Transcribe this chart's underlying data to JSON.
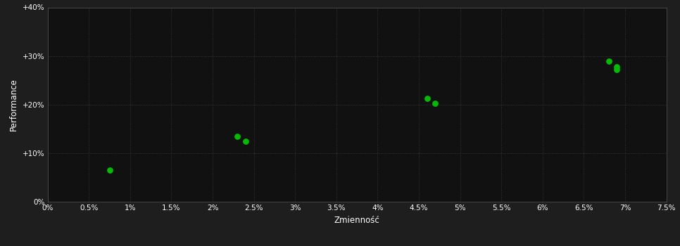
{
  "xlabel": "Zmienność",
  "ylabel": "Performance",
  "background_color": "#1e1e1e",
  "plot_bg_color": "#111111",
  "grid_color": "#404040",
  "text_color": "#ffffff",
  "point_color": "#00bb00",
  "points": [
    [
      0.0075,
      0.065
    ],
    [
      0.023,
      0.135
    ],
    [
      0.024,
      0.125
    ],
    [
      0.046,
      0.212
    ],
    [
      0.047,
      0.203
    ],
    [
      0.068,
      0.29
    ],
    [
      0.069,
      0.278
    ],
    [
      0.069,
      0.272
    ]
  ],
  "xlim": [
    0.0,
    0.075
  ],
  "ylim": [
    0.0,
    0.4
  ],
  "xticks": [
    0.0,
    0.005,
    0.01,
    0.015,
    0.02,
    0.025,
    0.03,
    0.035,
    0.04,
    0.045,
    0.05,
    0.055,
    0.06,
    0.065,
    0.07,
    0.075
  ],
  "yticks": [
    0.0,
    0.1,
    0.2,
    0.3,
    0.4
  ],
  "xtick_labels": [
    "0%",
    "0.5%",
    "1%",
    "1.5%",
    "2%",
    "2.5%",
    "3%",
    "3.5%",
    "4%",
    "4.5%",
    "5%",
    "5.5%",
    "6%",
    "6.5%",
    "7%",
    "7.5%"
  ],
  "ytick_labels": [
    "0%",
    "+10%",
    "+20%",
    "+30%",
    "+40%"
  ],
  "point_size": 28,
  "font_size_ticks": 7.5,
  "font_size_labels": 8.5
}
